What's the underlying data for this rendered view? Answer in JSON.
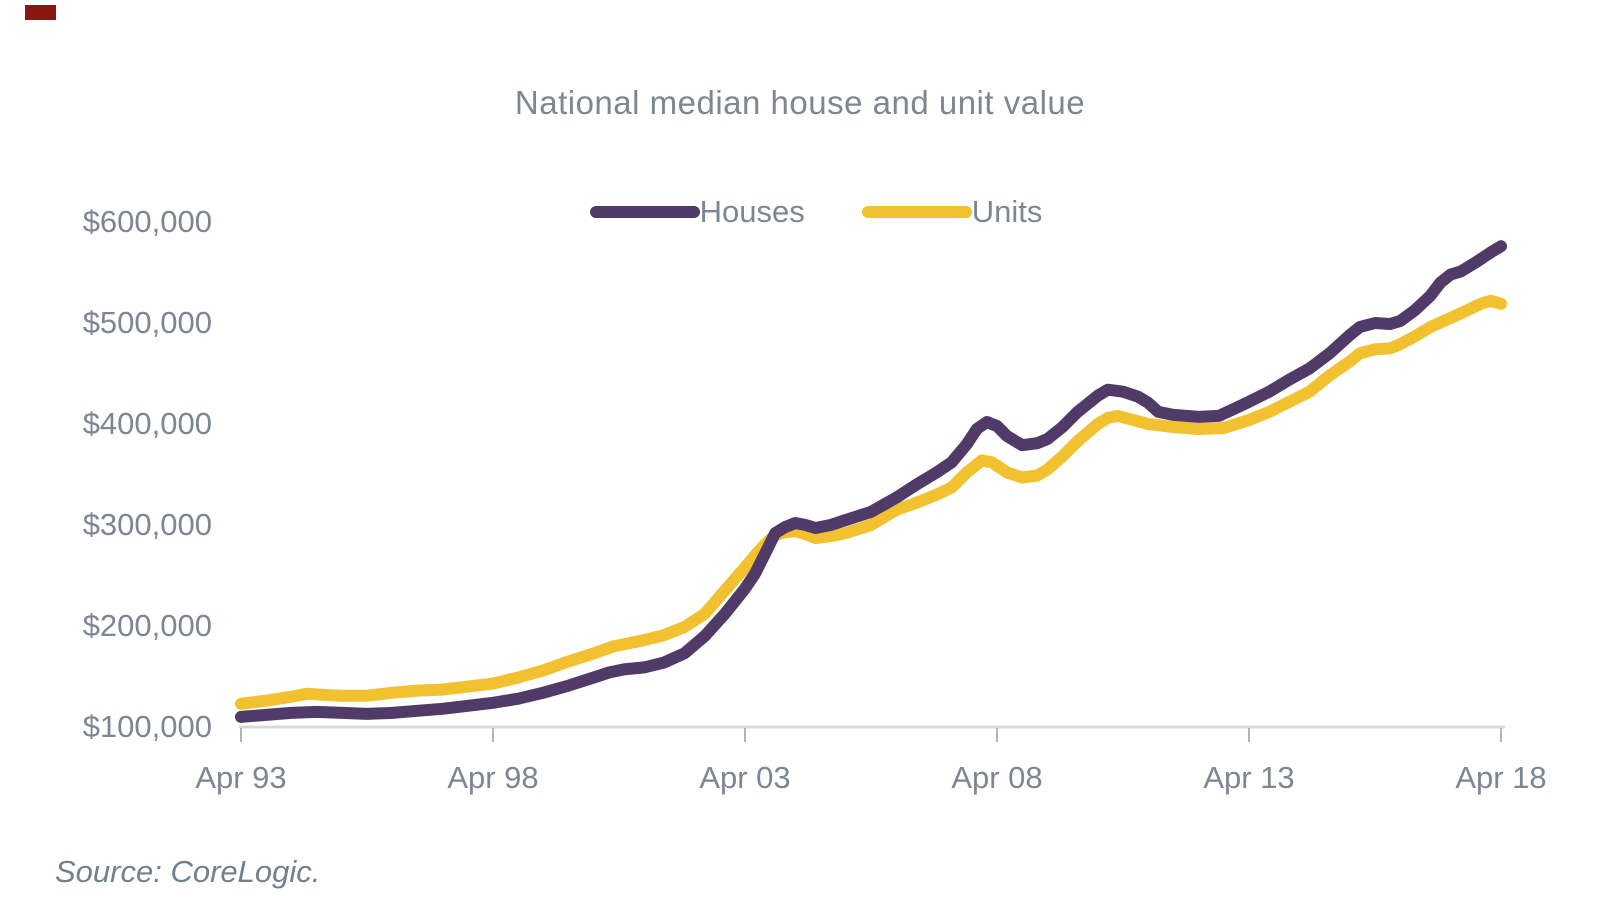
{
  "corner_mark": {
    "color": "#871710"
  },
  "colors": {
    "background": "#ffffff",
    "axis_line": "#d9d9d9",
    "tick": "#b3b3b3",
    "text": "#7d8692"
  },
  "chart_data": {
    "type": "line",
    "title": "National median house and unit value",
    "source_note": "Source: CoreLogic.",
    "xlabel": "",
    "ylabel": "",
    "grid": false,
    "legend_position": "top-center",
    "x_axis_unit": "years since Apr 1993",
    "x_range": [
      0,
      25
    ],
    "y_range": [
      100000,
      600000
    ],
    "x_ticks": [
      {
        "label": "Apr 93",
        "t": 0
      },
      {
        "label": "Apr 98",
        "t": 5
      },
      {
        "label": "Apr 03",
        "t": 10
      },
      {
        "label": "Apr 08",
        "t": 15
      },
      {
        "label": "Apr 13",
        "t": 20
      },
      {
        "label": "Apr 18",
        "t": 25
      }
    ],
    "y_ticks": [
      {
        "label": "$600,000",
        "value": 600000
      },
      {
        "label": "$500,000",
        "value": 500000
      },
      {
        "label": "$400,000",
        "value": 400000
      },
      {
        "label": "$300,000",
        "value": 300000
      },
      {
        "label": "$200,000",
        "value": 200000
      },
      {
        "label": "$100,000",
        "value": 100000
      }
    ],
    "series": [
      {
        "name": "Units",
        "color": "#f1c12f",
        "points": [
          [
            0,
            123000
          ],
          [
            0.5,
            126000
          ],
          [
            1,
            130000
          ],
          [
            1.3,
            133000
          ],
          [
            1.6,
            132000
          ],
          [
            2,
            131000
          ],
          [
            2.5,
            131000
          ],
          [
            3,
            134000
          ],
          [
            3.5,
            136000
          ],
          [
            4,
            137000
          ],
          [
            4.5,
            140000
          ],
          [
            5,
            143000
          ],
          [
            5.5,
            149000
          ],
          [
            6,
            156000
          ],
          [
            6.5,
            165000
          ],
          [
            7,
            173000
          ],
          [
            7.4,
            180000
          ],
          [
            8,
            186000
          ],
          [
            8.4,
            191000
          ],
          [
            8.8,
            199000
          ],
          [
            9.2,
            212000
          ],
          [
            9.6,
            235000
          ],
          [
            10,
            258000
          ],
          [
            10.2,
            270000
          ],
          [
            10.4,
            281000
          ],
          [
            10.6,
            290000
          ],
          [
            10.8,
            293000
          ],
          [
            11,
            294000
          ],
          [
            11.2,
            291000
          ],
          [
            11.4,
            287000
          ],
          [
            11.7,
            289000
          ],
          [
            12,
            292000
          ],
          [
            12.5,
            300000
          ],
          [
            13,
            315000
          ],
          [
            13.4,
            322000
          ],
          [
            13.8,
            330000
          ],
          [
            14.1,
            337000
          ],
          [
            14.4,
            352000
          ],
          [
            14.7,
            364000
          ],
          [
            14.9,
            362000
          ],
          [
            15.2,
            352000
          ],
          [
            15.5,
            347000
          ],
          [
            15.8,
            349000
          ],
          [
            16,
            355000
          ],
          [
            16.3,
            368000
          ],
          [
            16.6,
            383000
          ],
          [
            17,
            400000
          ],
          [
            17.2,
            406000
          ],
          [
            17.4,
            408000
          ],
          [
            17.7,
            404000
          ],
          [
            18,
            400000
          ],
          [
            18.5,
            397000
          ],
          [
            19,
            395000
          ],
          [
            19.5,
            396000
          ],
          [
            20,
            404000
          ],
          [
            20.4,
            412000
          ],
          [
            20.8,
            422000
          ],
          [
            21.2,
            432000
          ],
          [
            21.6,
            448000
          ],
          [
            22,
            462000
          ],
          [
            22.2,
            470000
          ],
          [
            22.5,
            474000
          ],
          [
            22.8,
            475000
          ],
          [
            23,
            479000
          ],
          [
            23.3,
            487000
          ],
          [
            23.6,
            496000
          ],
          [
            24,
            505000
          ],
          [
            24.3,
            512000
          ],
          [
            24.6,
            519000
          ],
          [
            24.8,
            522000
          ],
          [
            25,
            519000
          ]
        ]
      },
      {
        "name": "Houses",
        "color": "#503a67",
        "points": [
          [
            0,
            110000
          ],
          [
            0.5,
            112000
          ],
          [
            1,
            114000
          ],
          [
            1.5,
            115000
          ],
          [
            2,
            114000
          ],
          [
            2.5,
            113000
          ],
          [
            3,
            114000
          ],
          [
            3.5,
            116000
          ],
          [
            4,
            118000
          ],
          [
            4.5,
            121000
          ],
          [
            5,
            124000
          ],
          [
            5.5,
            128000
          ],
          [
            6,
            134000
          ],
          [
            6.5,
            141000
          ],
          [
            7,
            149000
          ],
          [
            7.3,
            154000
          ],
          [
            7.6,
            157000
          ],
          [
            8,
            159000
          ],
          [
            8.4,
            164000
          ],
          [
            8.8,
            173000
          ],
          [
            9.2,
            190000
          ],
          [
            9.6,
            212000
          ],
          [
            10,
            237000
          ],
          [
            10.2,
            252000
          ],
          [
            10.4,
            272000
          ],
          [
            10.6,
            292000
          ],
          [
            10.8,
            298000
          ],
          [
            11,
            302000
          ],
          [
            11.2,
            300000
          ],
          [
            11.4,
            297000
          ],
          [
            11.7,
            300000
          ],
          [
            12,
            305000
          ],
          [
            12.5,
            313000
          ],
          [
            13,
            327000
          ],
          [
            13.4,
            340000
          ],
          [
            13.8,
            352000
          ],
          [
            14.1,
            362000
          ],
          [
            14.4,
            380000
          ],
          [
            14.6,
            395000
          ],
          [
            14.8,
            402000
          ],
          [
            15,
            398000
          ],
          [
            15.2,
            388000
          ],
          [
            15.5,
            379000
          ],
          [
            15.8,
            381000
          ],
          [
            16,
            385000
          ],
          [
            16.3,
            397000
          ],
          [
            16.6,
            412000
          ],
          [
            17,
            428000
          ],
          [
            17.2,
            434000
          ],
          [
            17.5,
            432000
          ],
          [
            17.8,
            427000
          ],
          [
            18,
            421000
          ],
          [
            18.2,
            412000
          ],
          [
            18.5,
            409000
          ],
          [
            19,
            407000
          ],
          [
            19.4,
            408000
          ],
          [
            19.7,
            415000
          ],
          [
            20,
            422000
          ],
          [
            20.4,
            432000
          ],
          [
            20.8,
            444000
          ],
          [
            21.2,
            455000
          ],
          [
            21.6,
            470000
          ],
          [
            22,
            488000
          ],
          [
            22.2,
            496000
          ],
          [
            22.5,
            500000
          ],
          [
            22.8,
            499000
          ],
          [
            23,
            502000
          ],
          [
            23.3,
            513000
          ],
          [
            23.6,
            527000
          ],
          [
            23.8,
            540000
          ],
          [
            24,
            548000
          ],
          [
            24.2,
            551000
          ],
          [
            24.5,
            560000
          ],
          [
            24.8,
            570000
          ],
          [
            25,
            576000
          ]
        ]
      }
    ]
  }
}
